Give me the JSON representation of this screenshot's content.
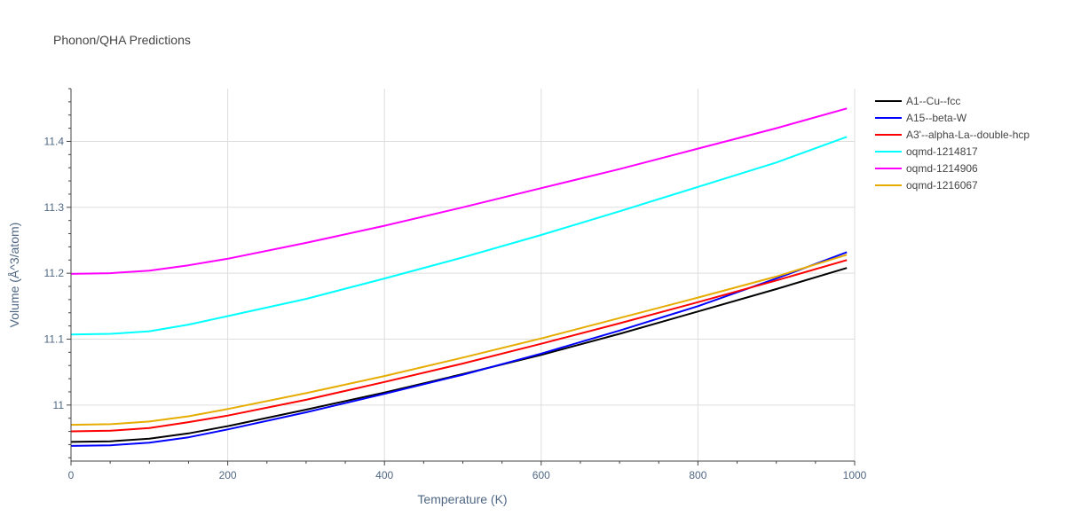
{
  "chart_data": {
    "type": "line",
    "title": "Phonon/QHA Predictions",
    "xlabel": "Temperature (K)",
    "ylabel": "Volume (Å^3/atom)",
    "xlim": [
      0,
      1000
    ],
    "ylim": [
      10.915,
      11.48
    ],
    "x_ticks": [
      0,
      200,
      400,
      600,
      800,
      1000
    ],
    "y_ticks": [
      11.0,
      11.1,
      11.2,
      11.3,
      11.4
    ],
    "x_tick_labels": [
      "0",
      "200",
      "400",
      "600",
      "800",
      "1000"
    ],
    "y_tick_labels": [
      "11",
      "11.1",
      "11.2",
      "11.3",
      "11.4"
    ],
    "grid": true,
    "legend_position": "right",
    "series": [
      {
        "name": "A1--Cu--fcc",
        "color": "#000000",
        "x": [
          0,
          50,
          100,
          150,
          200,
          300,
          400,
          500,
          600,
          700,
          800,
          900,
          990
        ],
        "y": [
          10.944,
          10.945,
          10.949,
          10.957,
          10.968,
          10.993,
          11.019,
          11.047,
          11.076,
          11.108,
          11.142,
          11.176,
          11.208
        ]
      },
      {
        "name": "A15--beta-W",
        "color": "#0000ff",
        "x": [
          0,
          50,
          100,
          150,
          200,
          300,
          400,
          500,
          600,
          700,
          800,
          900,
          990
        ],
        "y": [
          10.938,
          10.939,
          10.943,
          10.951,
          10.963,
          10.989,
          11.017,
          11.046,
          11.078,
          11.113,
          11.15,
          11.192,
          11.232
        ]
      },
      {
        "name": "A3'--alpha-La--double-hcp",
        "color": "#ff0000",
        "x": [
          0,
          50,
          100,
          150,
          200,
          300,
          400,
          500,
          600,
          700,
          800,
          900,
          990
        ],
        "y": [
          10.96,
          10.961,
          10.965,
          10.974,
          10.984,
          11.008,
          11.035,
          11.063,
          11.093,
          11.124,
          11.156,
          11.189,
          11.22
        ]
      },
      {
        "name": "oqmd-1214817",
        "color": "#00ffff",
        "x": [
          0,
          50,
          100,
          150,
          200,
          300,
          400,
          500,
          600,
          700,
          800,
          900,
          990
        ],
        "y": [
          11.107,
          11.108,
          11.112,
          11.122,
          11.135,
          11.161,
          11.192,
          11.224,
          11.258,
          11.294,
          11.331,
          11.368,
          11.407
        ]
      },
      {
        "name": "oqmd-1214906",
        "color": "#ff00ff",
        "x": [
          0,
          50,
          100,
          150,
          200,
          300,
          400,
          500,
          600,
          700,
          800,
          900,
          990
        ],
        "y": [
          11.199,
          11.2,
          11.204,
          11.212,
          11.222,
          11.246,
          11.272,
          11.3,
          11.329,
          11.358,
          11.389,
          11.42,
          11.45
        ]
      },
      {
        "name": "oqmd-1216067",
        "color": "#e6ac00",
        "x": [
          0,
          50,
          100,
          150,
          200,
          300,
          400,
          500,
          600,
          700,
          800,
          900,
          990
        ],
        "y": [
          10.97,
          10.971,
          10.975,
          10.983,
          10.994,
          11.018,
          11.044,
          11.072,
          11.101,
          11.132,
          11.163,
          11.195,
          11.228
        ]
      }
    ]
  }
}
